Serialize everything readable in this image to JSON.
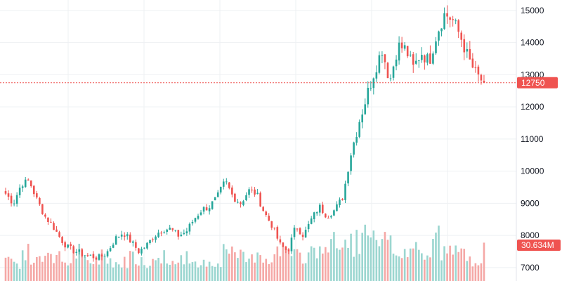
{
  "chart_data": {
    "type": "candlestick",
    "title": "",
    "xlabel": "",
    "ylabel": "",
    "ylim": [
      6800,
      15150
    ],
    "yticks": [
      7000,
      8000,
      9000,
      10000,
      11000,
      12000,
      13000,
      14000,
      15000
    ],
    "y_tick_labels": [
      "7000",
      "8000",
      "9000",
      "10000",
      "11000",
      "12000",
      "13000",
      "14000",
      "15000"
    ],
    "grid": true,
    "legend": "none",
    "last_price": 12750,
    "last_price_label": "12750",
    "last_volume_label": "30.634M",
    "colors": {
      "up": "#26a69a",
      "down": "#ef5350",
      "up_volume": "#9bd6d0",
      "down_volume": "#f5a8a6",
      "grid": "#eef0f3",
      "price_line": "#ef5350",
      "badge": "#ef5350"
    },
    "close_path": [
      9300,
      9000,
      9600,
      9700,
      9100,
      8600,
      8300,
      7900,
      7600,
      7500,
      7400,
      7350,
      7300,
      7500,
      7900,
      8100,
      7800,
      7500,
      7700,
      8000,
      8200,
      8200,
      8000,
      8100,
      8500,
      8800,
      8900,
      9200,
      9700,
      9200,
      9000,
      9400,
      9300,
      8700,
      8300,
      7700,
      7500,
      8300,
      8000,
      8500,
      8900,
      8600,
      8800,
      9200,
      10500,
      11500,
      12300,
      13100,
      13800,
      12800,
      13900,
      13800,
      13200,
      13700,
      13400,
      14300,
      14900,
      14700,
      14200,
      13500,
      13000,
      12750
    ],
    "volume_profile": [
      0.45,
      0.3,
      0.55,
      0.4,
      0.35,
      0.6,
      0.5,
      0.25,
      0.4,
      0.55,
      0.35,
      0.3,
      0.5,
      0.4,
      0.3,
      0.35,
      0.55,
      0.45,
      0.3,
      0.4,
      0.5,
      0.3,
      0.35,
      0.45,
      0.4,
      0.35,
      0.3,
      0.4,
      0.55,
      0.5,
      0.45,
      0.4,
      0.6,
      0.5,
      0.4,
      0.65,
      0.55,
      0.45,
      0.5,
      0.6,
      0.7,
      0.8,
      0.75,
      0.7,
      0.9,
      0.85,
      0.95,
      0.8,
      0.75,
      0.7,
      0.65,
      0.6,
      0.7,
      0.55,
      0.5,
      0.95,
      0.6,
      0.55,
      0.7,
      0.5,
      0.45,
      0.6
    ]
  }
}
